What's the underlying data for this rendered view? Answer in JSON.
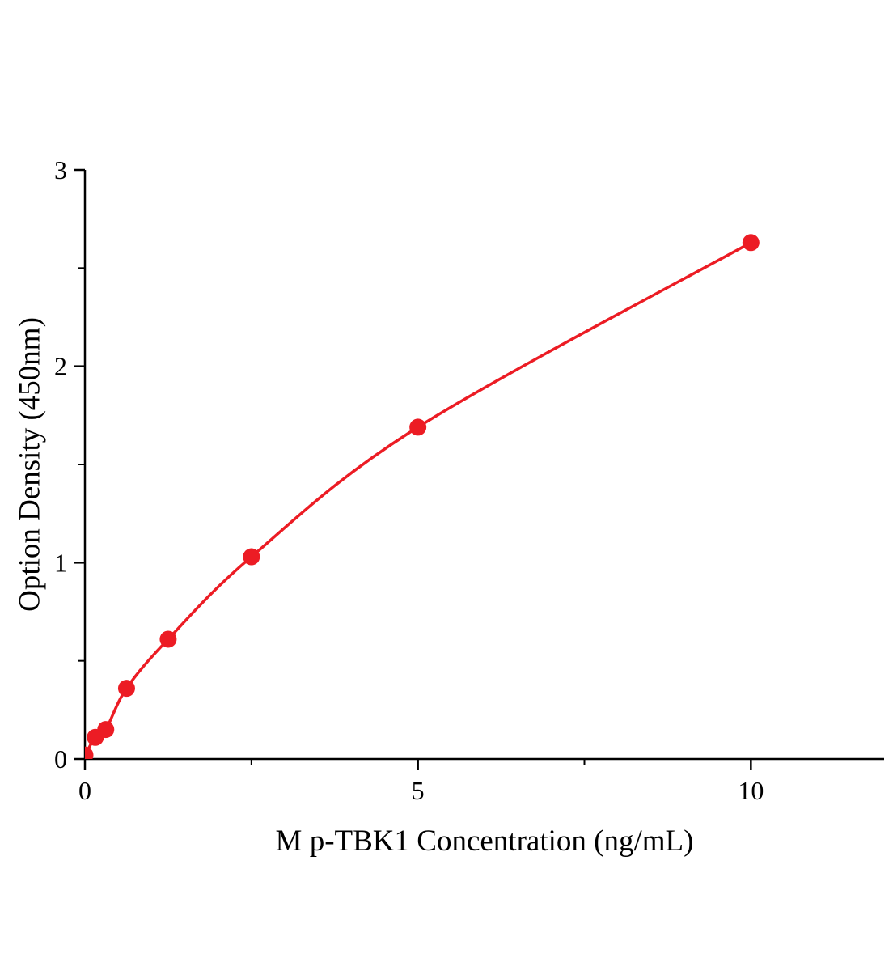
{
  "page": {
    "background": "#ffffff"
  },
  "chart_data": {
    "type": "scatter",
    "title": "",
    "xlabel": "M p-TBK1 Concentration (ng/mL)",
    "ylabel": "Option Density (450nm)",
    "xlim": [
      0,
      12
    ],
    "ylim": [
      0,
      3
    ],
    "x_major_ticks": [
      0,
      5,
      10
    ],
    "x_minor_ticks": [
      2.5,
      7.5
    ],
    "y_major_ticks": [
      0,
      1,
      2,
      3
    ],
    "y_minor_ticks": [
      0.5,
      1.5,
      2.5
    ],
    "grid": false,
    "legend_position": "none",
    "axis_color": "#000000",
    "series": [
      {
        "name": "p-TBK1 standard curve",
        "color": "#ec1c24",
        "marker": "circle",
        "line": "smooth",
        "x": [
          0,
          0.156,
          0.313,
          0.625,
          1.25,
          2.5,
          5,
          10
        ],
        "y": [
          0.02,
          0.11,
          0.15,
          0.36,
          0.61,
          1.03,
          1.69,
          2.63
        ]
      }
    ]
  }
}
